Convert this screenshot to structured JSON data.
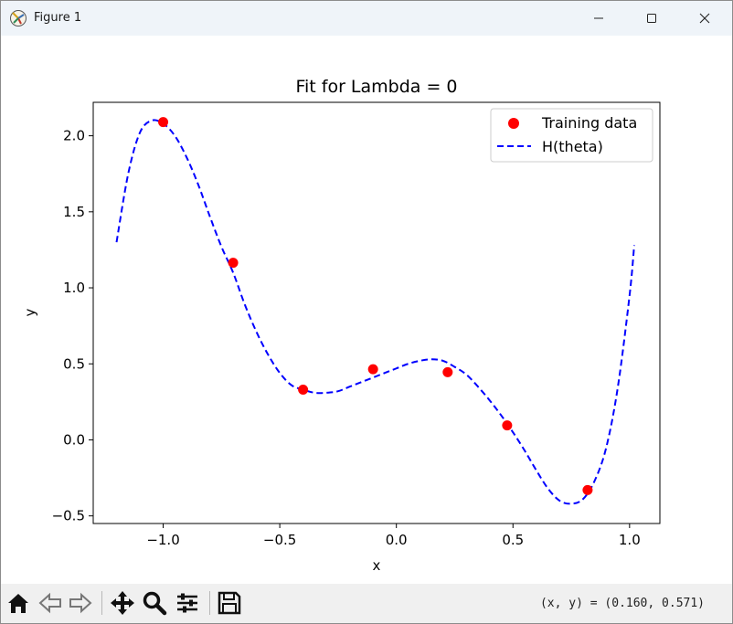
{
  "window": {
    "title": "Figure 1",
    "app_icon": "matplotlib-icon",
    "controls": [
      "minimize-icon",
      "maximize-icon",
      "close-icon"
    ]
  },
  "toolbar": {
    "tools": [
      "home-icon",
      "back-arrow-icon",
      "forward-arrow-icon",
      "pan-icon",
      "zoom-icon",
      "configure-subplots-icon",
      "save-icon"
    ],
    "coordinates": "(x, y) = (0.160, 0.571)"
  },
  "chart_data": {
    "type": "scatter",
    "title": "Fit for Lambda = 0",
    "xlabel": "x",
    "ylabel": "y",
    "xlim": [
      -1.3,
      1.13
    ],
    "ylim": [
      -0.55,
      2.22
    ],
    "xticks": [
      -1.0,
      -0.5,
      0.0,
      0.5,
      1.0
    ],
    "xtick_labels": [
      "−1.0",
      "−0.5",
      "0.0",
      "0.5",
      "1.0"
    ],
    "yticks": [
      -0.5,
      0.0,
      0.5,
      1.0,
      1.5,
      2.0
    ],
    "ytick_labels": [
      "−0.5",
      "0.0",
      "0.5",
      "1.0",
      "1.5",
      "2.0"
    ],
    "grid": false,
    "legend_position": "top-right",
    "series": [
      {
        "name": "Training data",
        "kind": "scatter",
        "color": "#ff0000",
        "x": [
          -1.0,
          -0.7,
          -0.4,
          -0.1,
          0.22,
          0.475,
          0.82
        ],
        "y": [
          2.09,
          1.165,
          0.33,
          0.465,
          0.445,
          0.095,
          -0.33
        ]
      },
      {
        "name": "H(theta)",
        "kind": "line",
        "style": "dashed",
        "color": "#0000ff",
        "x": [
          -1.2,
          -1.15,
          -1.1,
          -1.05,
          -1.0,
          -0.95,
          -0.9,
          -0.85,
          -0.8,
          -0.75,
          -0.7,
          -0.65,
          -0.6,
          -0.55,
          -0.5,
          -0.45,
          -0.4,
          -0.35,
          -0.3,
          -0.25,
          -0.2,
          -0.15,
          -0.1,
          -0.05,
          0.0,
          0.05,
          0.1,
          0.15,
          0.2,
          0.25,
          0.3,
          0.35,
          0.4,
          0.45,
          0.5,
          0.55,
          0.6,
          0.65,
          0.7,
          0.75,
          0.8,
          0.85,
          0.9,
          0.95,
          1.0,
          1.02
        ],
        "y": [
          1.3,
          1.75,
          2.02,
          2.1,
          2.08,
          2.0,
          1.86,
          1.68,
          1.47,
          1.27,
          1.1,
          0.89,
          0.71,
          0.56,
          0.44,
          0.36,
          0.33,
          0.31,
          0.31,
          0.32,
          0.35,
          0.38,
          0.41,
          0.44,
          0.47,
          0.5,
          0.52,
          0.53,
          0.52,
          0.48,
          0.43,
          0.35,
          0.26,
          0.16,
          0.05,
          -0.07,
          -0.2,
          -0.32,
          -0.4,
          -0.42,
          -0.39,
          -0.27,
          -0.05,
          0.35,
          0.95,
          1.28
        ]
      }
    ]
  }
}
